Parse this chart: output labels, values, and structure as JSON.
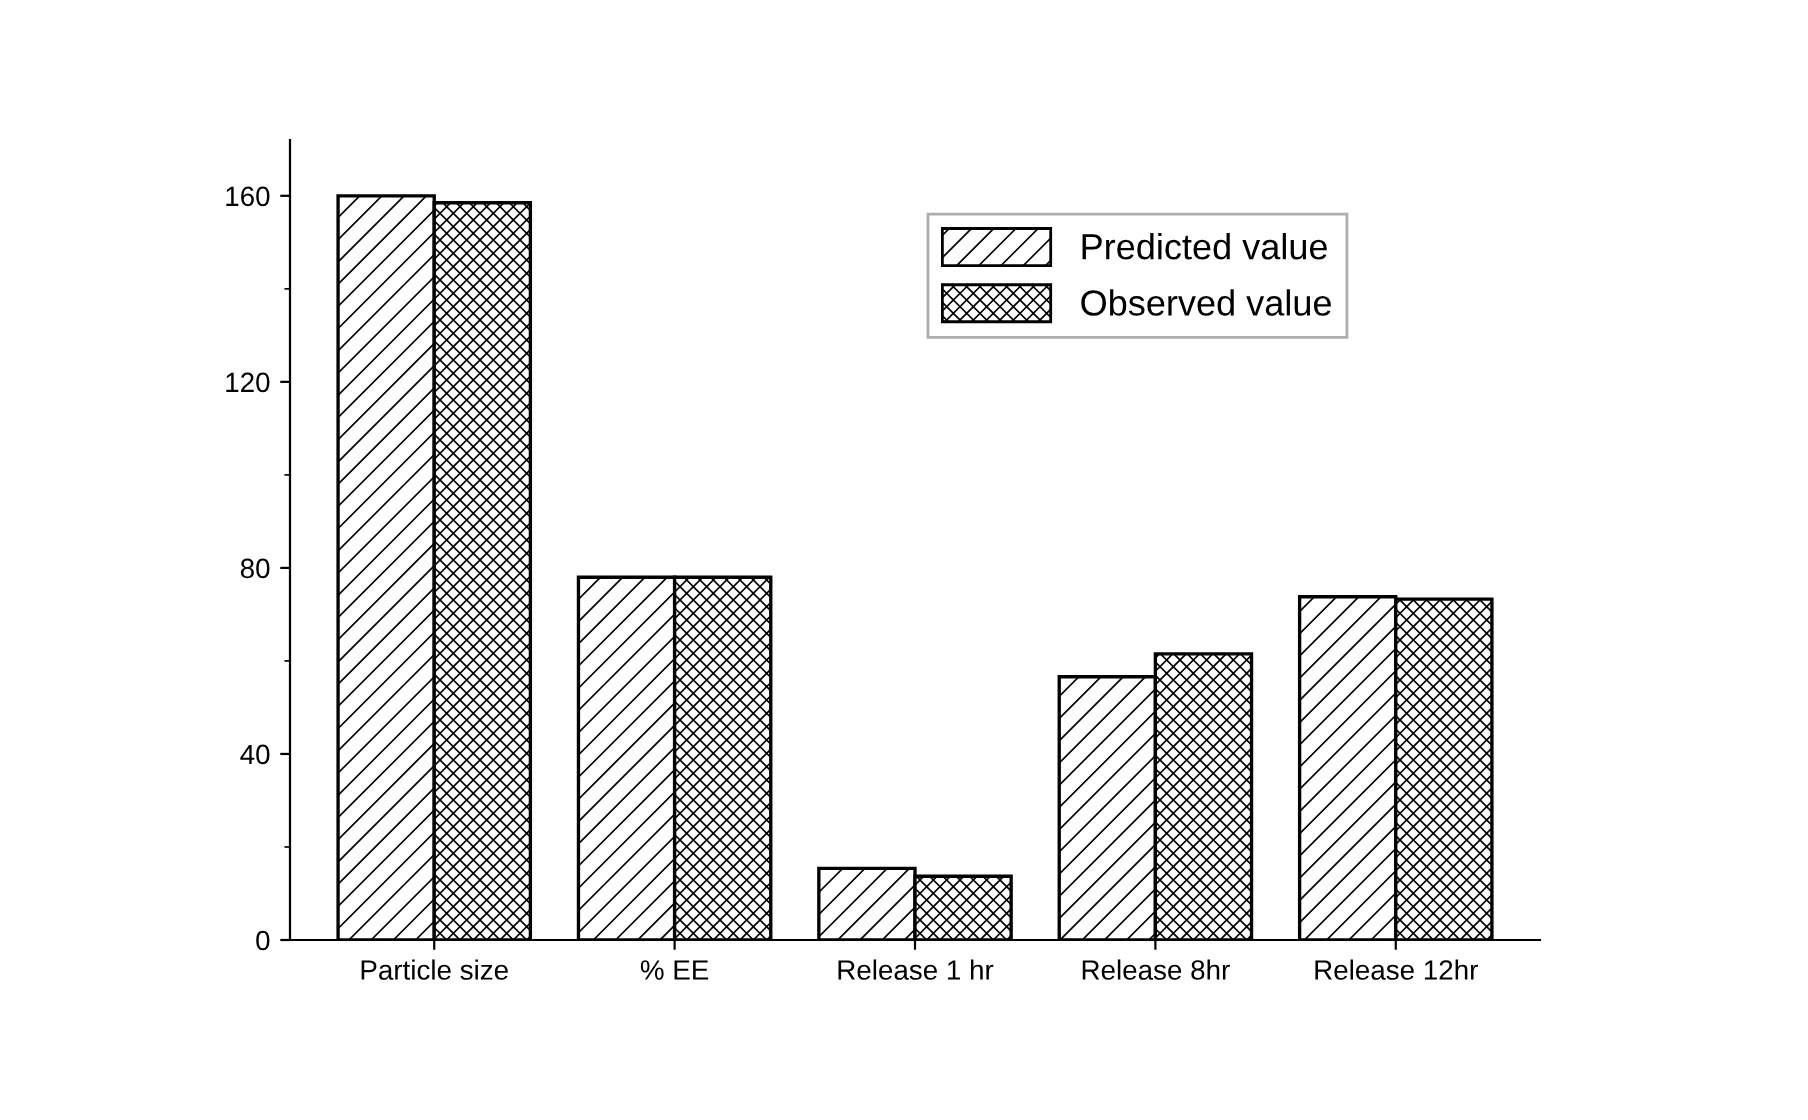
{
  "chart_data": {
    "type": "bar",
    "categories": [
      "Particle size",
      "% EE",
      "Release 1 hr",
      "Release 8hr",
      "Release 12hr"
    ],
    "series": [
      {
        "name": "Predicted value",
        "color": "#000000",
        "values": [
          160,
          78,
          15.4,
          56.6,
          73.8
        ]
      },
      {
        "name": "Observed value",
        "color": "#000000",
        "values": [
          158.5,
          78,
          13.7,
          61.5,
          73.3
        ]
      }
    ],
    "ylim": [
      0,
      172
    ],
    "yticks": [
      0,
      40,
      80,
      120,
      160
    ],
    "grid": false,
    "legend": "top right"
  }
}
